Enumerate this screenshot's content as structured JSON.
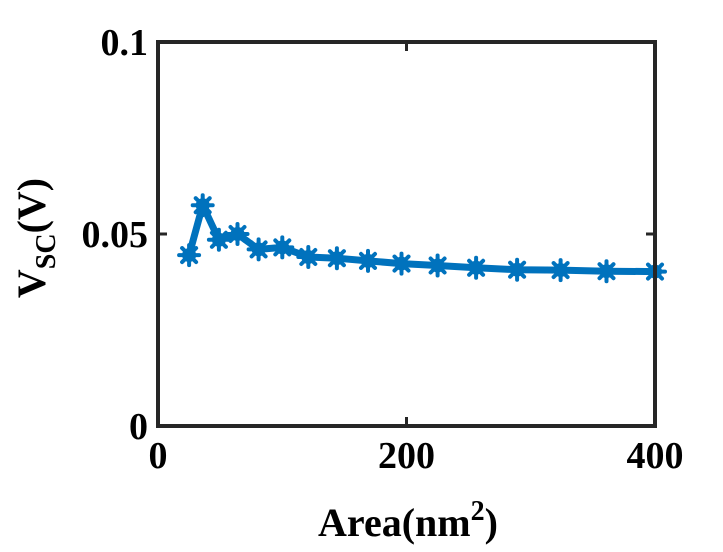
{
  "chart_data": {
    "type": "line",
    "title": "",
    "xlabel": "Area(nm",
    "xlabel_superscript": "2",
    "xlabel_suffix": ")",
    "ylabel_main": "V",
    "ylabel_subscript": "SC",
    "ylabel_suffix": "(V)",
    "xlim": [
      0,
      400
    ],
    "ylim": [
      0,
      0.1
    ],
    "xticks": [
      0,
      200,
      400
    ],
    "xtick_labels": [
      "0",
      "200",
      "400"
    ],
    "yticks": [
      0,
      0.05,
      0.1
    ],
    "ytick_labels": [
      "0",
      "0.05",
      "0.1"
    ],
    "grid": false,
    "series": [
      {
        "color": "#0072BD",
        "marker": "asterisk",
        "x": [
          25,
          36,
          49,
          64,
          81,
          100,
          121,
          144,
          169,
          196,
          225,
          256,
          289,
          324,
          361,
          400
        ],
        "y": [
          0.0445,
          0.0575,
          0.0485,
          0.05,
          0.046,
          0.0465,
          0.044,
          0.0437,
          0.043,
          0.0423,
          0.0418,
          0.0412,
          0.0407,
          0.0406,
          0.0403,
          0.0402
        ]
      }
    ]
  }
}
